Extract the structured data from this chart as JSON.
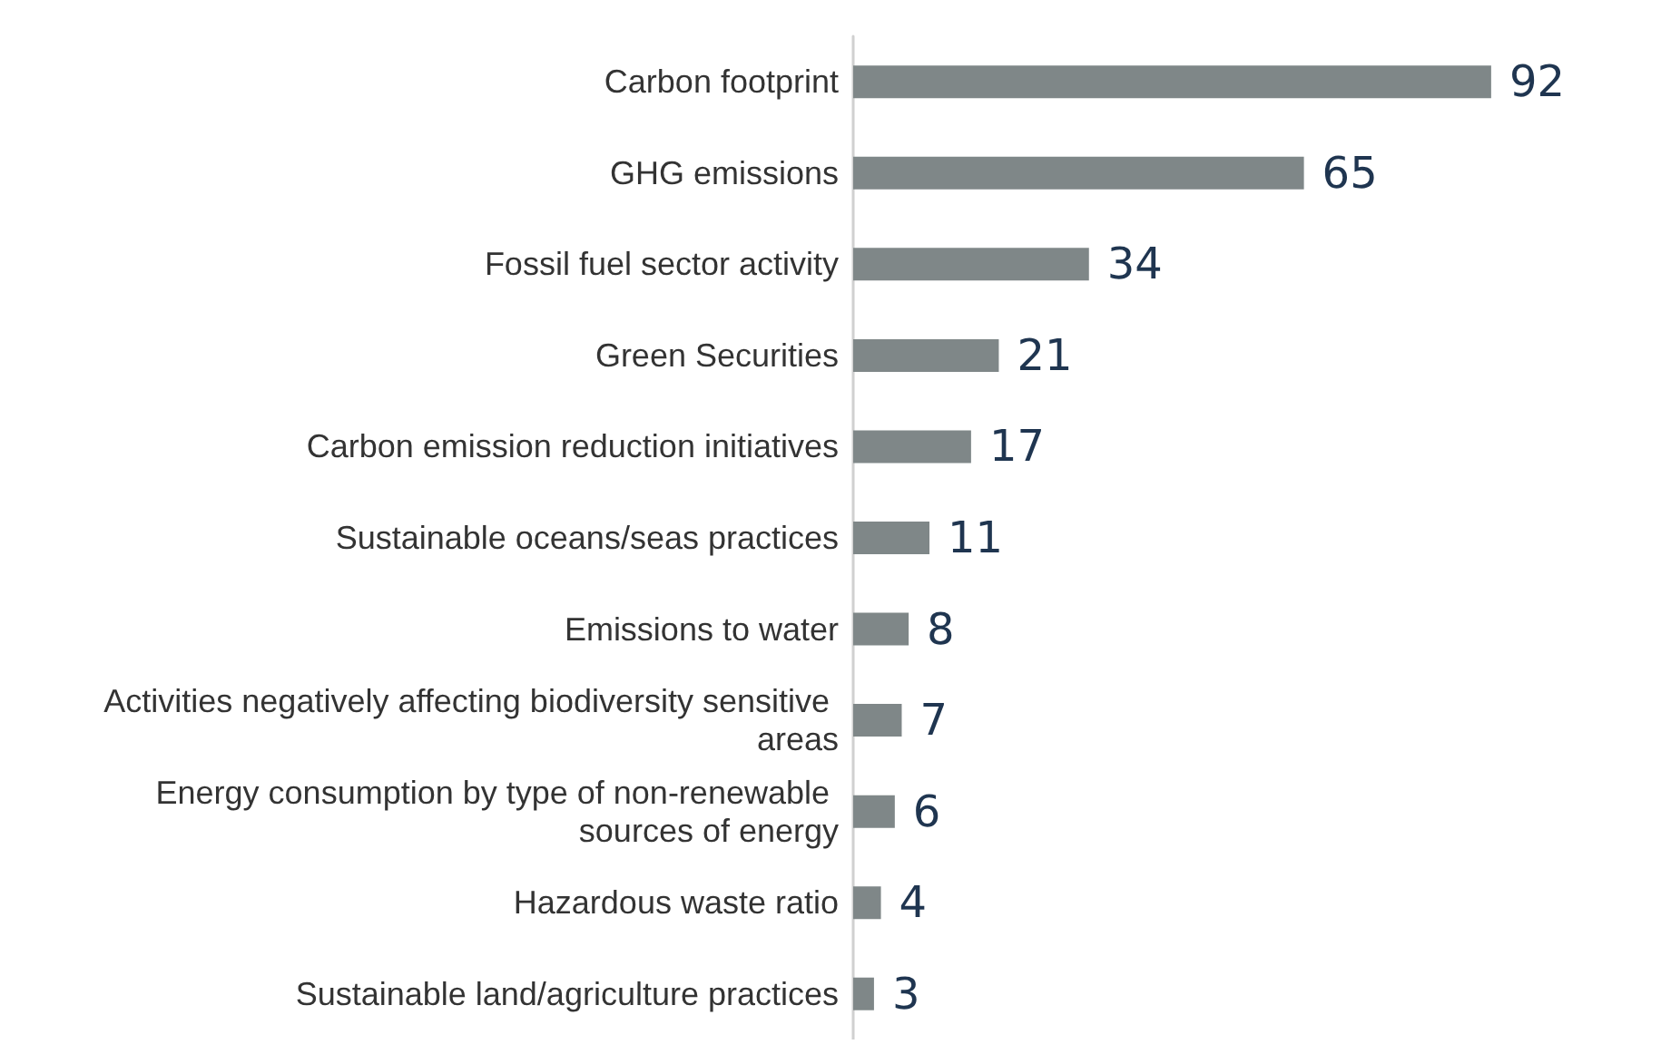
{
  "chart_data": {
    "type": "bar",
    "orientation": "horizontal",
    "categories": [
      "Carbon footprint",
      "GHG emissions",
      "Fossil fuel sector activity",
      "Green Securities",
      "Carbon emission reduction initiatives",
      "Sustainable oceans/seas practices",
      "Emissions to water",
      "Activities negatively affecting biodiversity sensitive areas",
      "Energy consumption by type of non-renewable sources of energy",
      "Hazardous waste ratio",
      "Sustainable land/agriculture practices"
    ],
    "values": [
      92,
      65,
      34,
      21,
      17,
      11,
      8,
      7,
      6,
      4,
      3
    ],
    "color": "#7f8788",
    "data_labels": true
  }
}
